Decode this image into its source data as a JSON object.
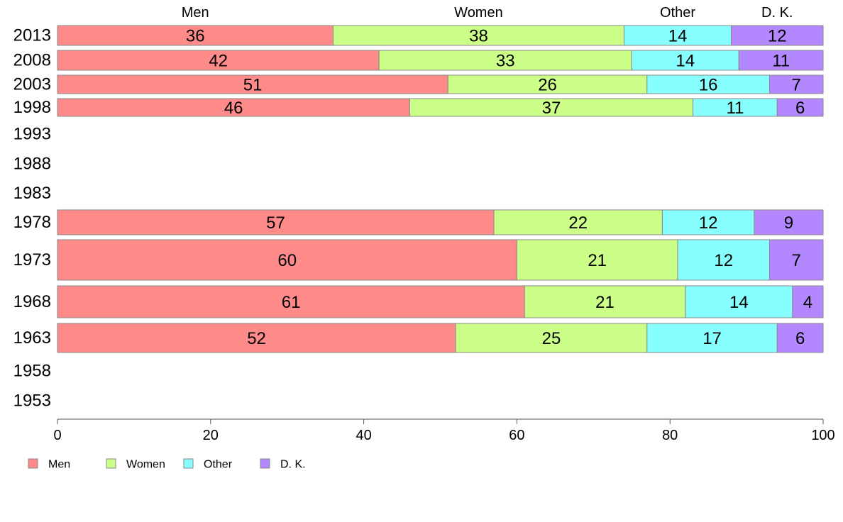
{
  "chart_data": {
    "type": "bar",
    "orientation": "horizontal",
    "stacked": true,
    "categories": [
      "2013",
      "2008",
      "2003",
      "1998",
      "1993",
      "1988",
      "1983",
      "1978",
      "1973",
      "1968",
      "1963",
      "1958",
      "1953"
    ],
    "series": [
      {
        "name": "Men",
        "color": "#ff8a8a",
        "values": [
          36,
          42,
          51,
          46,
          null,
          null,
          null,
          57,
          60,
          61,
          52,
          null,
          null
        ]
      },
      {
        "name": "Women",
        "color": "#ccff88",
        "values": [
          38,
          33,
          26,
          37,
          null,
          null,
          null,
          22,
          21,
          21,
          25,
          null,
          null
        ]
      },
      {
        "name": "Other",
        "color": "#88ffff",
        "values": [
          14,
          14,
          16,
          11,
          null,
          null,
          null,
          12,
          12,
          14,
          17,
          null,
          null
        ]
      },
      {
        "name": "D. K.",
        "color": "#b388ff",
        "values": [
          12,
          11,
          7,
          6,
          null,
          null,
          null,
          9,
          7,
          4,
          6,
          null,
          null
        ]
      }
    ],
    "xlim": [
      0,
      100
    ],
    "xticks": [
      "0",
      "20",
      "40",
      "60",
      "80",
      "100"
    ],
    "legend_position": "bottom-left"
  }
}
